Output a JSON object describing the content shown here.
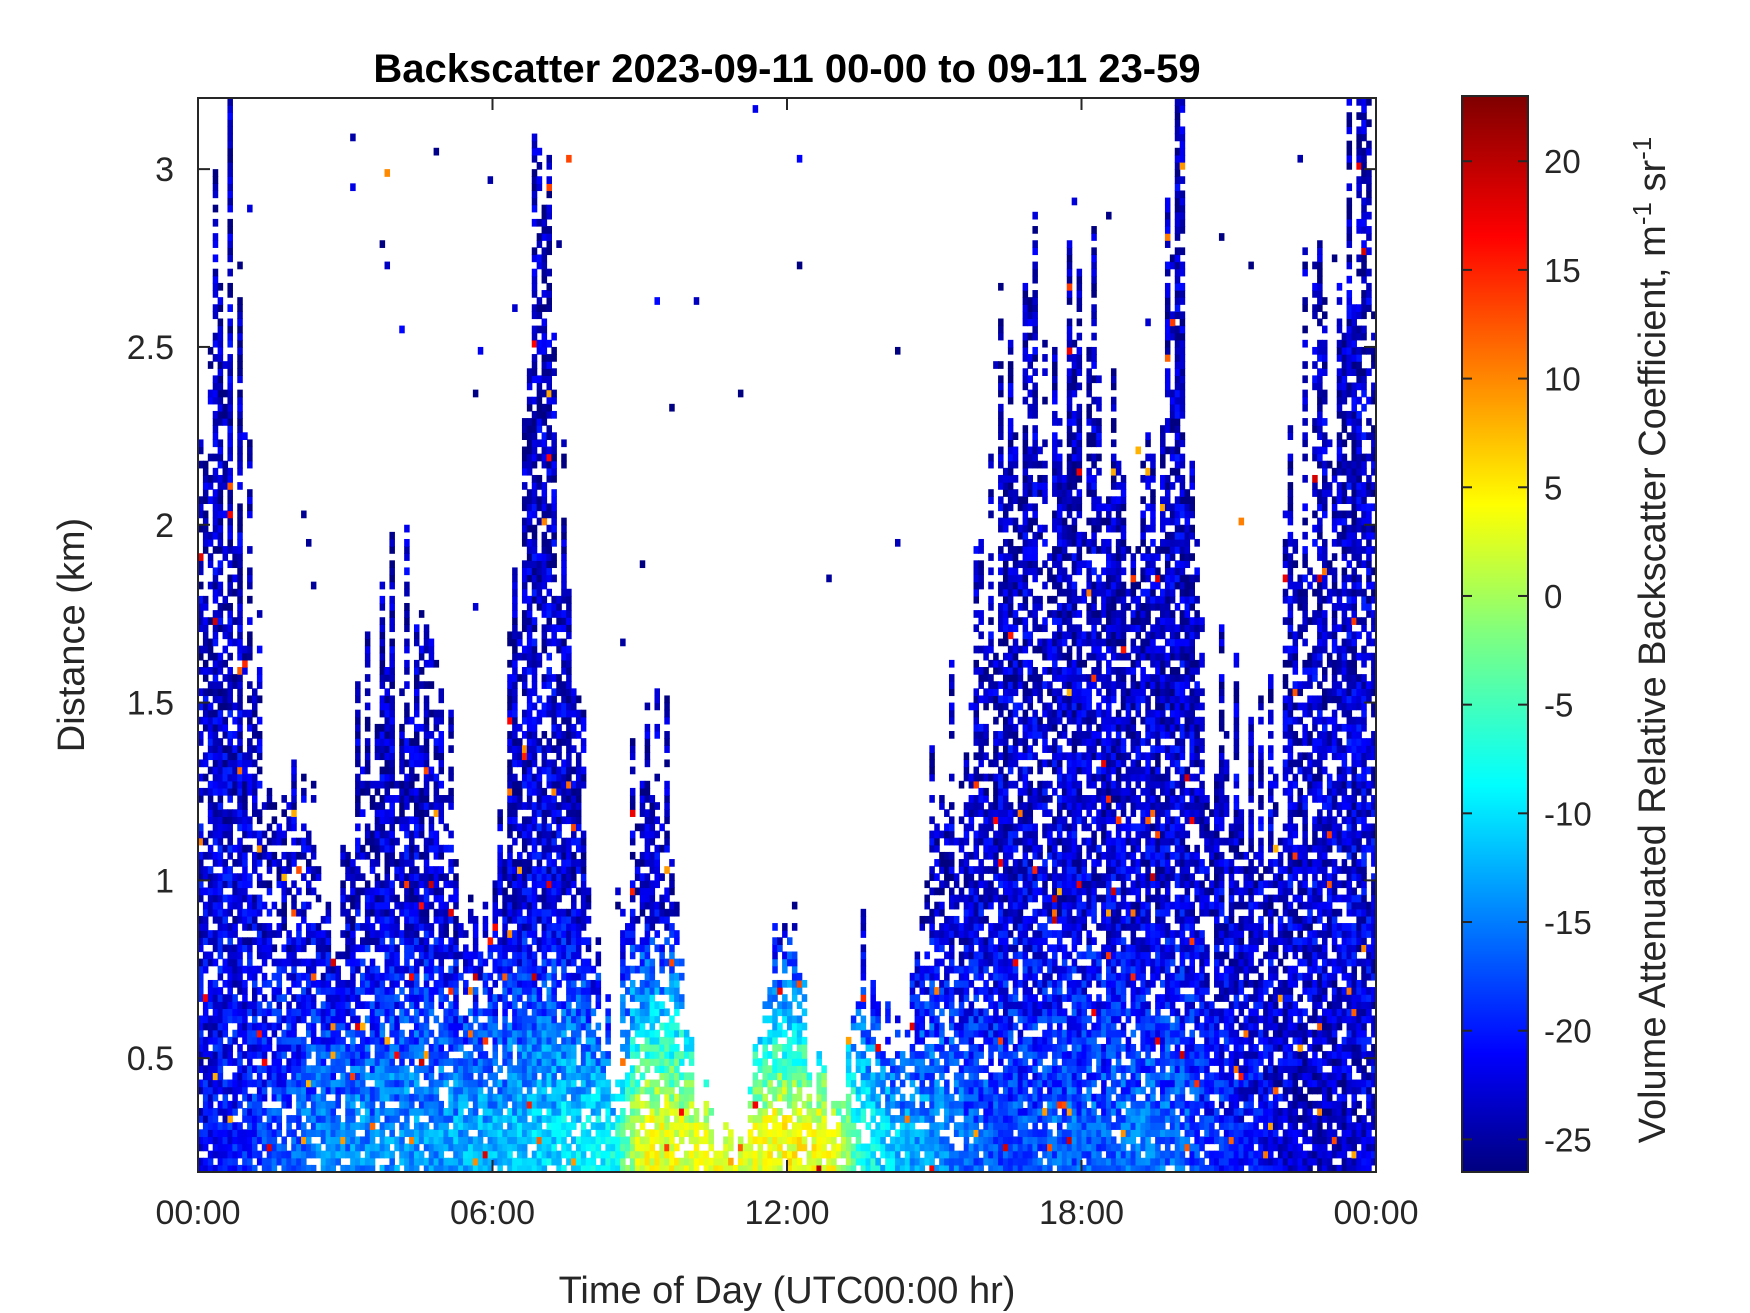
{
  "chart_data": {
    "type": "heatmap",
    "title": "Backscatter 2023-09-11 00-00 to 09-11 23-59",
    "xlabel": "Time of Day (UTC00:00 hr)",
    "ylabel": "Distance (km)",
    "xlim": [
      0,
      24
    ],
    "ylim": [
      0.18,
      3.2
    ],
    "x_ticks": [
      0,
      6,
      12,
      18,
      24
    ],
    "x_tick_labels": [
      "00:00",
      "06:00",
      "12:00",
      "18:00",
      "00:00"
    ],
    "y_ticks": [
      0.5,
      1,
      1.5,
      2,
      2.5,
      3
    ],
    "y_tick_labels": [
      "0.5",
      "1",
      "1.5",
      "2",
      "2.5",
      "3"
    ],
    "colorbar": {
      "label": "Volume Attenuated Relative Backscatter Coefficient, m",
      "label_sup1": "-1",
      "label_mid": " sr",
      "label_sup2": "-1",
      "colormap": "jet",
      "range": [
        -26.5,
        23
      ],
      "ticks": [
        -25,
        -20,
        -15,
        -10,
        -5,
        0,
        5,
        10,
        15,
        20
      ],
      "tick_labels": [
        "-25",
        "-20",
        "-15",
        "-10",
        "-5",
        "0",
        "5",
        "10",
        "15",
        "20"
      ]
    },
    "profile": {
      "description_units": "hour of day -> top of detected backscatter (km) and near-surface value",
      "hours": [
        0,
        0.5,
        1,
        1.5,
        2,
        2.5,
        3,
        3.5,
        4,
        4.5,
        5,
        5.5,
        6,
        6.5,
        7,
        7.5,
        8,
        8.5,
        9,
        9.5,
        10,
        10.5,
        11,
        11.5,
        12,
        12.5,
        13,
        13.5,
        14,
        14.5,
        15,
        15.5,
        16,
        16.5,
        17,
        17.5,
        18,
        18.5,
        19,
        19.5,
        20,
        20.5,
        21,
        21.5,
        22,
        22.5,
        23,
        23.5,
        24
      ],
      "top_km": [
        2.05,
        3.2,
        1.95,
        1.25,
        1.35,
        1.1,
        0.95,
        1.65,
        1.8,
        1.7,
        1.55,
        0.8,
        0.85,
        1.7,
        3.0,
        1.85,
        1.0,
        0.45,
        1.5,
        1.4,
        0.55,
        0.3,
        0.3,
        0.55,
        1.0,
        0.5,
        0.32,
        0.8,
        0.55,
        0.62,
        1.5,
        1.45,
        1.9,
        2.3,
        2.7,
        2.3,
        2.6,
        2.5,
        1.9,
        2.2,
        3.2,
        1.65,
        1.4,
        1.3,
        1.5,
        2.5,
        2.3,
        3.2,
        3.2
      ],
      "surface_value": [
        -21,
        -20,
        -19,
        -17,
        -16,
        -14,
        -14,
        -14,
        -13,
        -13,
        -13,
        -12,
        -12,
        -11,
        -10,
        -10,
        -9,
        -8,
        3,
        3,
        3,
        3,
        3,
        3,
        4,
        4,
        3,
        -6,
        -10,
        -12,
        -13,
        -15,
        -16,
        -17,
        -17,
        -16,
        -16,
        -16,
        -15,
        -15,
        -16,
        -18,
        -19,
        -20,
        -22,
        -23,
        -24,
        -23,
        -22
      ]
    }
  }
}
